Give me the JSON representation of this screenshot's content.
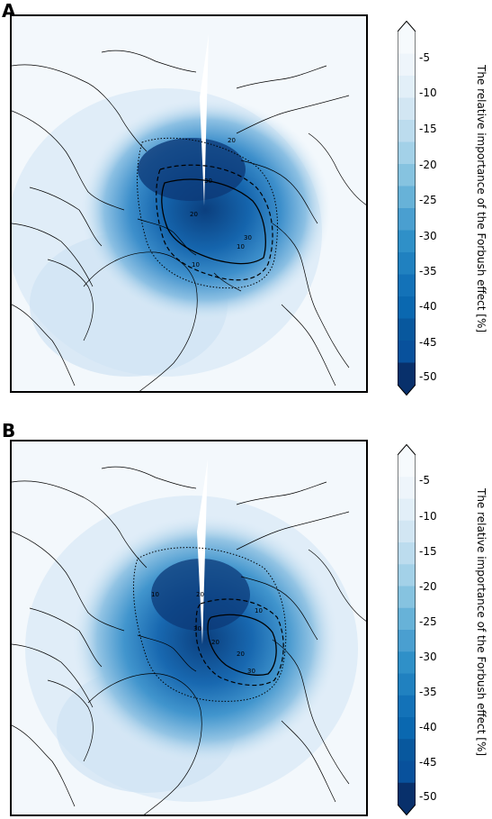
{
  "panels": [
    {
      "letter": "A",
      "contour_labels": [
        "10",
        "20",
        "30",
        "20",
        "10",
        "30"
      ]
    },
    {
      "letter": "B",
      "contour_labels": [
        "10",
        "20",
        "30",
        "20",
        "20",
        "10",
        "30"
      ]
    }
  ],
  "colorbar": {
    "label": "The relative importance of the Forbush effect [%]",
    "ticks": [
      "-5",
      "-10",
      "-15",
      "-20",
      "-25",
      "-30",
      "-35",
      "-40",
      "-45",
      "-50"
    ],
    "range": [
      -50,
      0
    ],
    "colors": [
      "#08306b",
      "#08519c",
      "#08589e",
      "#0a68b0",
      "#1372b8",
      "#2081c0",
      "#2f90c8",
      "#4a9fd0",
      "#67b2d8",
      "#86c3e0",
      "#a3d1e8",
      "#bcdcee",
      "#d2e6f3",
      "#e2eff8",
      "#eef5fb",
      "#f6fafd"
    ]
  }
}
